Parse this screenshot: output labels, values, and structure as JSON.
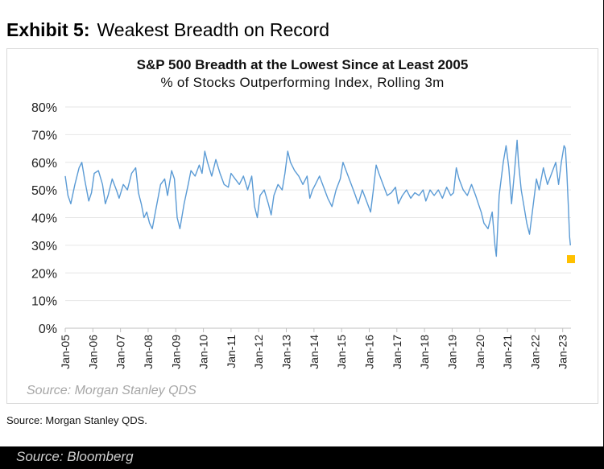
{
  "exhibit": {
    "label": "Exhibit 5:",
    "title": "Weakest Breadth on Record"
  },
  "chart_data": {
    "type": "line",
    "title": "S&P 500 Breadth at the Lowest Since at Least 2005",
    "subtitle": "% of Stocks Outperforming  Index, Rolling 3m",
    "xlabel": "",
    "ylabel": "",
    "ylim": [
      0,
      80
    ],
    "yticks": [
      "0%",
      "10%",
      "20%",
      "30%",
      "40%",
      "50%",
      "60%",
      "70%",
      "80%"
    ],
    "xticks": [
      "Jan-05",
      "Jan-06",
      "Jan-07",
      "Jan-08",
      "Jan-09",
      "Jan-10",
      "Jan-11",
      "Jan-12",
      "Jan-13",
      "Jan-14",
      "Jan-15",
      "Jan-16",
      "Jan-17",
      "Jan-18",
      "Jan-19",
      "Jan-20",
      "Jan-21",
      "Jan-22",
      "Jan-23"
    ],
    "grid": true,
    "legend": "none",
    "series": [
      {
        "color": "#5b9bd5",
        "points": [
          [
            2005.0,
            55
          ],
          [
            2005.1,
            48
          ],
          [
            2005.2,
            45
          ],
          [
            2005.35,
            52
          ],
          [
            2005.5,
            58
          ],
          [
            2005.6,
            60
          ],
          [
            2005.7,
            54
          ],
          [
            2005.85,
            46
          ],
          [
            2005.95,
            49
          ],
          [
            2006.05,
            56
          ],
          [
            2006.2,
            57
          ],
          [
            2006.35,
            52
          ],
          [
            2006.45,
            45
          ],
          [
            2006.55,
            48
          ],
          [
            2006.7,
            54
          ],
          [
            2006.85,
            50
          ],
          [
            2006.95,
            47
          ],
          [
            2007.1,
            52
          ],
          [
            2007.25,
            50
          ],
          [
            2007.4,
            56
          ],
          [
            2007.55,
            58
          ],
          [
            2007.65,
            49
          ],
          [
            2007.75,
            45
          ],
          [
            2007.85,
            40
          ],
          [
            2007.95,
            42
          ],
          [
            2008.05,
            38
          ],
          [
            2008.15,
            36
          ],
          [
            2008.3,
            44
          ],
          [
            2008.45,
            52
          ],
          [
            2008.6,
            54
          ],
          [
            2008.7,
            48
          ],
          [
            2008.85,
            57
          ],
          [
            2008.95,
            54
          ],
          [
            2009.05,
            40
          ],
          [
            2009.15,
            36
          ],
          [
            2009.3,
            45
          ],
          [
            2009.45,
            52
          ],
          [
            2009.55,
            57
          ],
          [
            2009.7,
            55
          ],
          [
            2009.85,
            59
          ],
          [
            2009.95,
            56
          ],
          [
            2010.05,
            64
          ],
          [
            2010.15,
            60
          ],
          [
            2010.3,
            55
          ],
          [
            2010.45,
            61
          ],
          [
            2010.6,
            56
          ],
          [
            2010.75,
            52
          ],
          [
            2010.9,
            51
          ],
          [
            2011.0,
            56
          ],
          [
            2011.15,
            54
          ],
          [
            2011.3,
            52
          ],
          [
            2011.45,
            55
          ],
          [
            2011.6,
            50
          ],
          [
            2011.75,
            55
          ],
          [
            2011.85,
            44
          ],
          [
            2011.95,
            40
          ],
          [
            2012.05,
            48
          ],
          [
            2012.2,
            50
          ],
          [
            2012.35,
            45
          ],
          [
            2012.45,
            41
          ],
          [
            2012.55,
            48
          ],
          [
            2012.7,
            52
          ],
          [
            2012.85,
            50
          ],
          [
            2012.95,
            56
          ],
          [
            2013.05,
            64
          ],
          [
            2013.15,
            60
          ],
          [
            2013.3,
            57
          ],
          [
            2013.45,
            55
          ],
          [
            2013.6,
            52
          ],
          [
            2013.75,
            55
          ],
          [
            2013.85,
            47
          ],
          [
            2013.95,
            50
          ],
          [
            2014.05,
            52
          ],
          [
            2014.2,
            55
          ],
          [
            2014.35,
            51
          ],
          [
            2014.5,
            47
          ],
          [
            2014.65,
            44
          ],
          [
            2014.8,
            50
          ],
          [
            2014.95,
            54
          ],
          [
            2015.05,
            60
          ],
          [
            2015.2,
            56
          ],
          [
            2015.35,
            52
          ],
          [
            2015.5,
            48
          ],
          [
            2015.6,
            45
          ],
          [
            2015.75,
            50
          ],
          [
            2015.9,
            46
          ],
          [
            2016.05,
            42
          ],
          [
            2016.15,
            50
          ],
          [
            2016.25,
            59
          ],
          [
            2016.35,
            56
          ],
          [
            2016.5,
            52
          ],
          [
            2016.65,
            48
          ],
          [
            2016.8,
            49
          ],
          [
            2016.95,
            51
          ],
          [
            2017.05,
            45
          ],
          [
            2017.2,
            48
          ],
          [
            2017.35,
            50
          ],
          [
            2017.5,
            47
          ],
          [
            2017.65,
            49
          ],
          [
            2017.8,
            48
          ],
          [
            2017.95,
            50
          ],
          [
            2018.05,
            46
          ],
          [
            2018.2,
            50
          ],
          [
            2018.35,
            48
          ],
          [
            2018.5,
            50
          ],
          [
            2018.65,
            47
          ],
          [
            2018.8,
            51
          ],
          [
            2018.95,
            48
          ],
          [
            2019.05,
            49
          ],
          [
            2019.15,
            58
          ],
          [
            2019.25,
            54
          ],
          [
            2019.4,
            50
          ],
          [
            2019.55,
            48
          ],
          [
            2019.7,
            52
          ],
          [
            2019.85,
            48
          ],
          [
            2019.95,
            45
          ],
          [
            2020.05,
            42
          ],
          [
            2020.15,
            38
          ],
          [
            2020.3,
            36
          ],
          [
            2020.45,
            42
          ],
          [
            2020.55,
            30
          ],
          [
            2020.6,
            26
          ],
          [
            2020.7,
            48
          ],
          [
            2020.85,
            60
          ],
          [
            2020.95,
            66
          ],
          [
            2021.05,
            58
          ],
          [
            2021.15,
            45
          ],
          [
            2021.25,
            56
          ],
          [
            2021.35,
            68
          ],
          [
            2021.4,
            60
          ],
          [
            2021.5,
            50
          ],
          [
            2021.6,
            44
          ],
          [
            2021.7,
            38
          ],
          [
            2021.8,
            34
          ],
          [
            2021.9,
            42
          ],
          [
            2022.05,
            54
          ],
          [
            2022.15,
            50
          ],
          [
            2022.3,
            58
          ],
          [
            2022.45,
            52
          ],
          [
            2022.6,
            56
          ],
          [
            2022.75,
            60
          ],
          [
            2022.85,
            52
          ],
          [
            2022.95,
            60
          ],
          [
            2023.05,
            66
          ],
          [
            2023.1,
            65
          ],
          [
            2023.15,
            56
          ],
          [
            2023.2,
            45
          ],
          [
            2023.25,
            33
          ],
          [
            2023.28,
            30
          ]
        ]
      }
    ],
    "highlight_point": {
      "x": 2023.3,
      "y": 25,
      "color": "#ffc000"
    },
    "source_note": "Source: Morgan Stanley QDS"
  },
  "footer": {
    "source": "Source: Morgan Stanley QDS."
  },
  "credit": "Source: Bloomberg"
}
